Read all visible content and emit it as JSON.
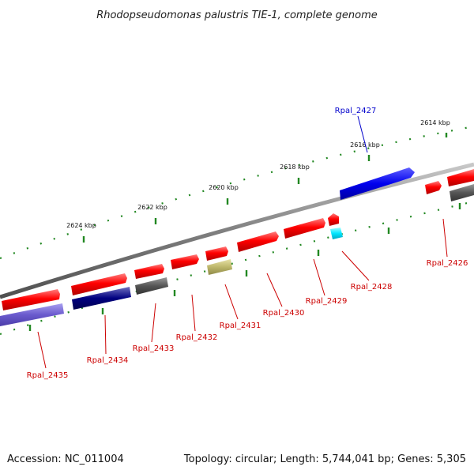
{
  "title": "Rhodopseudomonas palustris TIE-1, complete genome",
  "footer": {
    "accession": "Accession: NC_011004",
    "topology": "Topology: circular; Length: 5,744,041 bp; Genes: 5,305"
  },
  "colors": {
    "backbone": "#808080",
    "tick_dots": "#228822",
    "gene_red": "#ff0000",
    "gene_blue": "#0000ee",
    "gene_purple": "#6a5acd",
    "gene_navy": "#000080",
    "gene_gray": "#555555",
    "gene_khaki": "#bdb76b",
    "gene_cyan": "#00e5ff",
    "label_red": "#cc0000",
    "label_blue": "#0000cc"
  },
  "ticks": [
    {
      "label": "2614 kbp"
    },
    {
      "label": "2616 kbp"
    },
    {
      "label": "2618 kbp"
    },
    {
      "label": "2620 kbp"
    },
    {
      "label": "2622 kbp"
    },
    {
      "label": "2624 kbp"
    }
  ],
  "labels": [
    {
      "name": "Rpal_2427",
      "color": "blue"
    },
    {
      "name": "Rpal_2426",
      "color": "red"
    },
    {
      "name": "Rpal_2428",
      "color": "red"
    },
    {
      "name": "Rpal_2429",
      "color": "red"
    },
    {
      "name": "Rpal_2430",
      "color": "red"
    },
    {
      "name": "Rpal_2431",
      "color": "red"
    },
    {
      "name": "Rpal_2432",
      "color": "red"
    },
    {
      "name": "Rpal_2433",
      "color": "red"
    },
    {
      "name": "Rpal_2434",
      "color": "red"
    },
    {
      "name": "Rpal_2435",
      "color": "red"
    }
  ]
}
